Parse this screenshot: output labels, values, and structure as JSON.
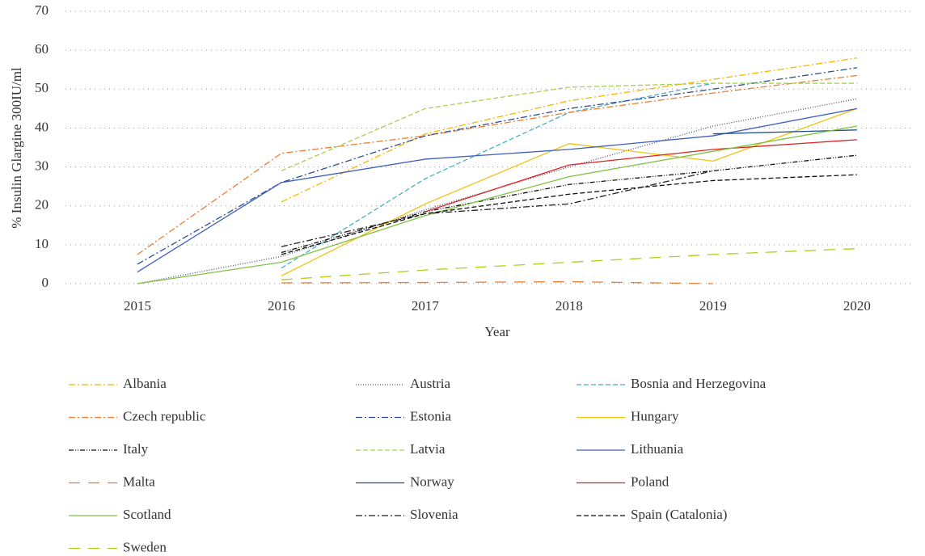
{
  "chart_data": {
    "type": "line",
    "y_label": "% Insulin Glargine 300IU/ml",
    "x_label": "Year",
    "x": [
      2015,
      2016,
      2017,
      2018,
      2019,
      2020
    ],
    "xlim": [
      2014.5,
      2020.4
    ],
    "xticks": [
      2015,
      2016,
      2017,
      2018,
      2019,
      2020
    ],
    "ylim": [
      0,
      70
    ],
    "yticks": [
      0,
      10,
      20,
      30,
      40,
      50,
      60,
      70
    ],
    "grid": true,
    "legend": "bottom",
    "series": [
      {
        "name": "Albania",
        "color": "#f5b800",
        "dash": "8 3 2 3",
        "values": [
          null,
          21,
          38.5,
          47,
          52.5,
          58
        ]
      },
      {
        "name": "Austria",
        "color": "#44546a",
        "dash": "1 2",
        "values": [
          0,
          7,
          19,
          30,
          40.5,
          47.5
        ]
      },
      {
        "name": "Bosnia and Herzegovina",
        "color": "#4bacc6",
        "dash": "6 3",
        "values": [
          null,
          4,
          27,
          44,
          51.5,
          null
        ]
      },
      {
        "name": "Czech republic",
        "color": "#ed7d31",
        "dash": "8 3 2 3",
        "values": [
          7.5,
          33.5,
          38,
          44,
          49,
          53.5
        ]
      },
      {
        "name": "Estonia",
        "color": "#2f4f8f",
        "dash": "8 3 2 3",
        "values": [
          5,
          26,
          38,
          45,
          50,
          55.5
        ]
      },
      {
        "name": "Hungary",
        "color": "#f2c010",
        "dash": "",
        "values": [
          null,
          2,
          20.5,
          36,
          31.5,
          45
        ]
      },
      {
        "name": "Italy",
        "color": "#111111",
        "dash": "6 2 1 2 1 2",
        "values": [
          null,
          8,
          18.5,
          25.5,
          29,
          33
        ]
      },
      {
        "name": "Latvia",
        "color": "#a9d04f",
        "dash": "6 3",
        "values": [
          null,
          29,
          45,
          50.5,
          51.5,
          51.5
        ]
      },
      {
        "name": "Lithuania",
        "color": "#3f5fbf",
        "dash": "",
        "values": [
          3,
          26,
          32,
          34.5,
          38,
          45
        ]
      },
      {
        "name": "Malta",
        "color": "#ed7d31",
        "dash": "14 10",
        "values": [
          null,
          0.2,
          0.3,
          0.5,
          0,
          null
        ]
      },
      {
        "name": "Norway",
        "color": "#1f4e8c",
        "dash": "",
        "values": [
          null,
          null,
          null,
          null,
          38.5,
          39.5
        ]
      },
      {
        "name": "Poland",
        "color": "#e02020",
        "dash": "",
        "values": [
          null,
          null,
          18.5,
          30.5,
          34.5,
          37
        ]
      },
      {
        "name": "Scotland",
        "color": "#7fc241",
        "dash": "",
        "values": [
          0,
          5.5,
          17.5,
          27.5,
          34,
          40.5
        ]
      },
      {
        "name": "Slovenia",
        "color": "#222222",
        "dash": "8 3 2 3",
        "values": [
          null,
          9.5,
          18,
          20.5,
          29,
          null
        ]
      },
      {
        "name": "Spain (Catalonia)",
        "color": "#111111",
        "dash": "6 3",
        "values": [
          null,
          7.5,
          18,
          23,
          26.5,
          28
        ]
      },
      {
        "name": "Sweden",
        "color": "#b5cc18",
        "dash": "14 10",
        "values": [
          null,
          1,
          3.5,
          5.5,
          7.5,
          9
        ]
      }
    ]
  }
}
